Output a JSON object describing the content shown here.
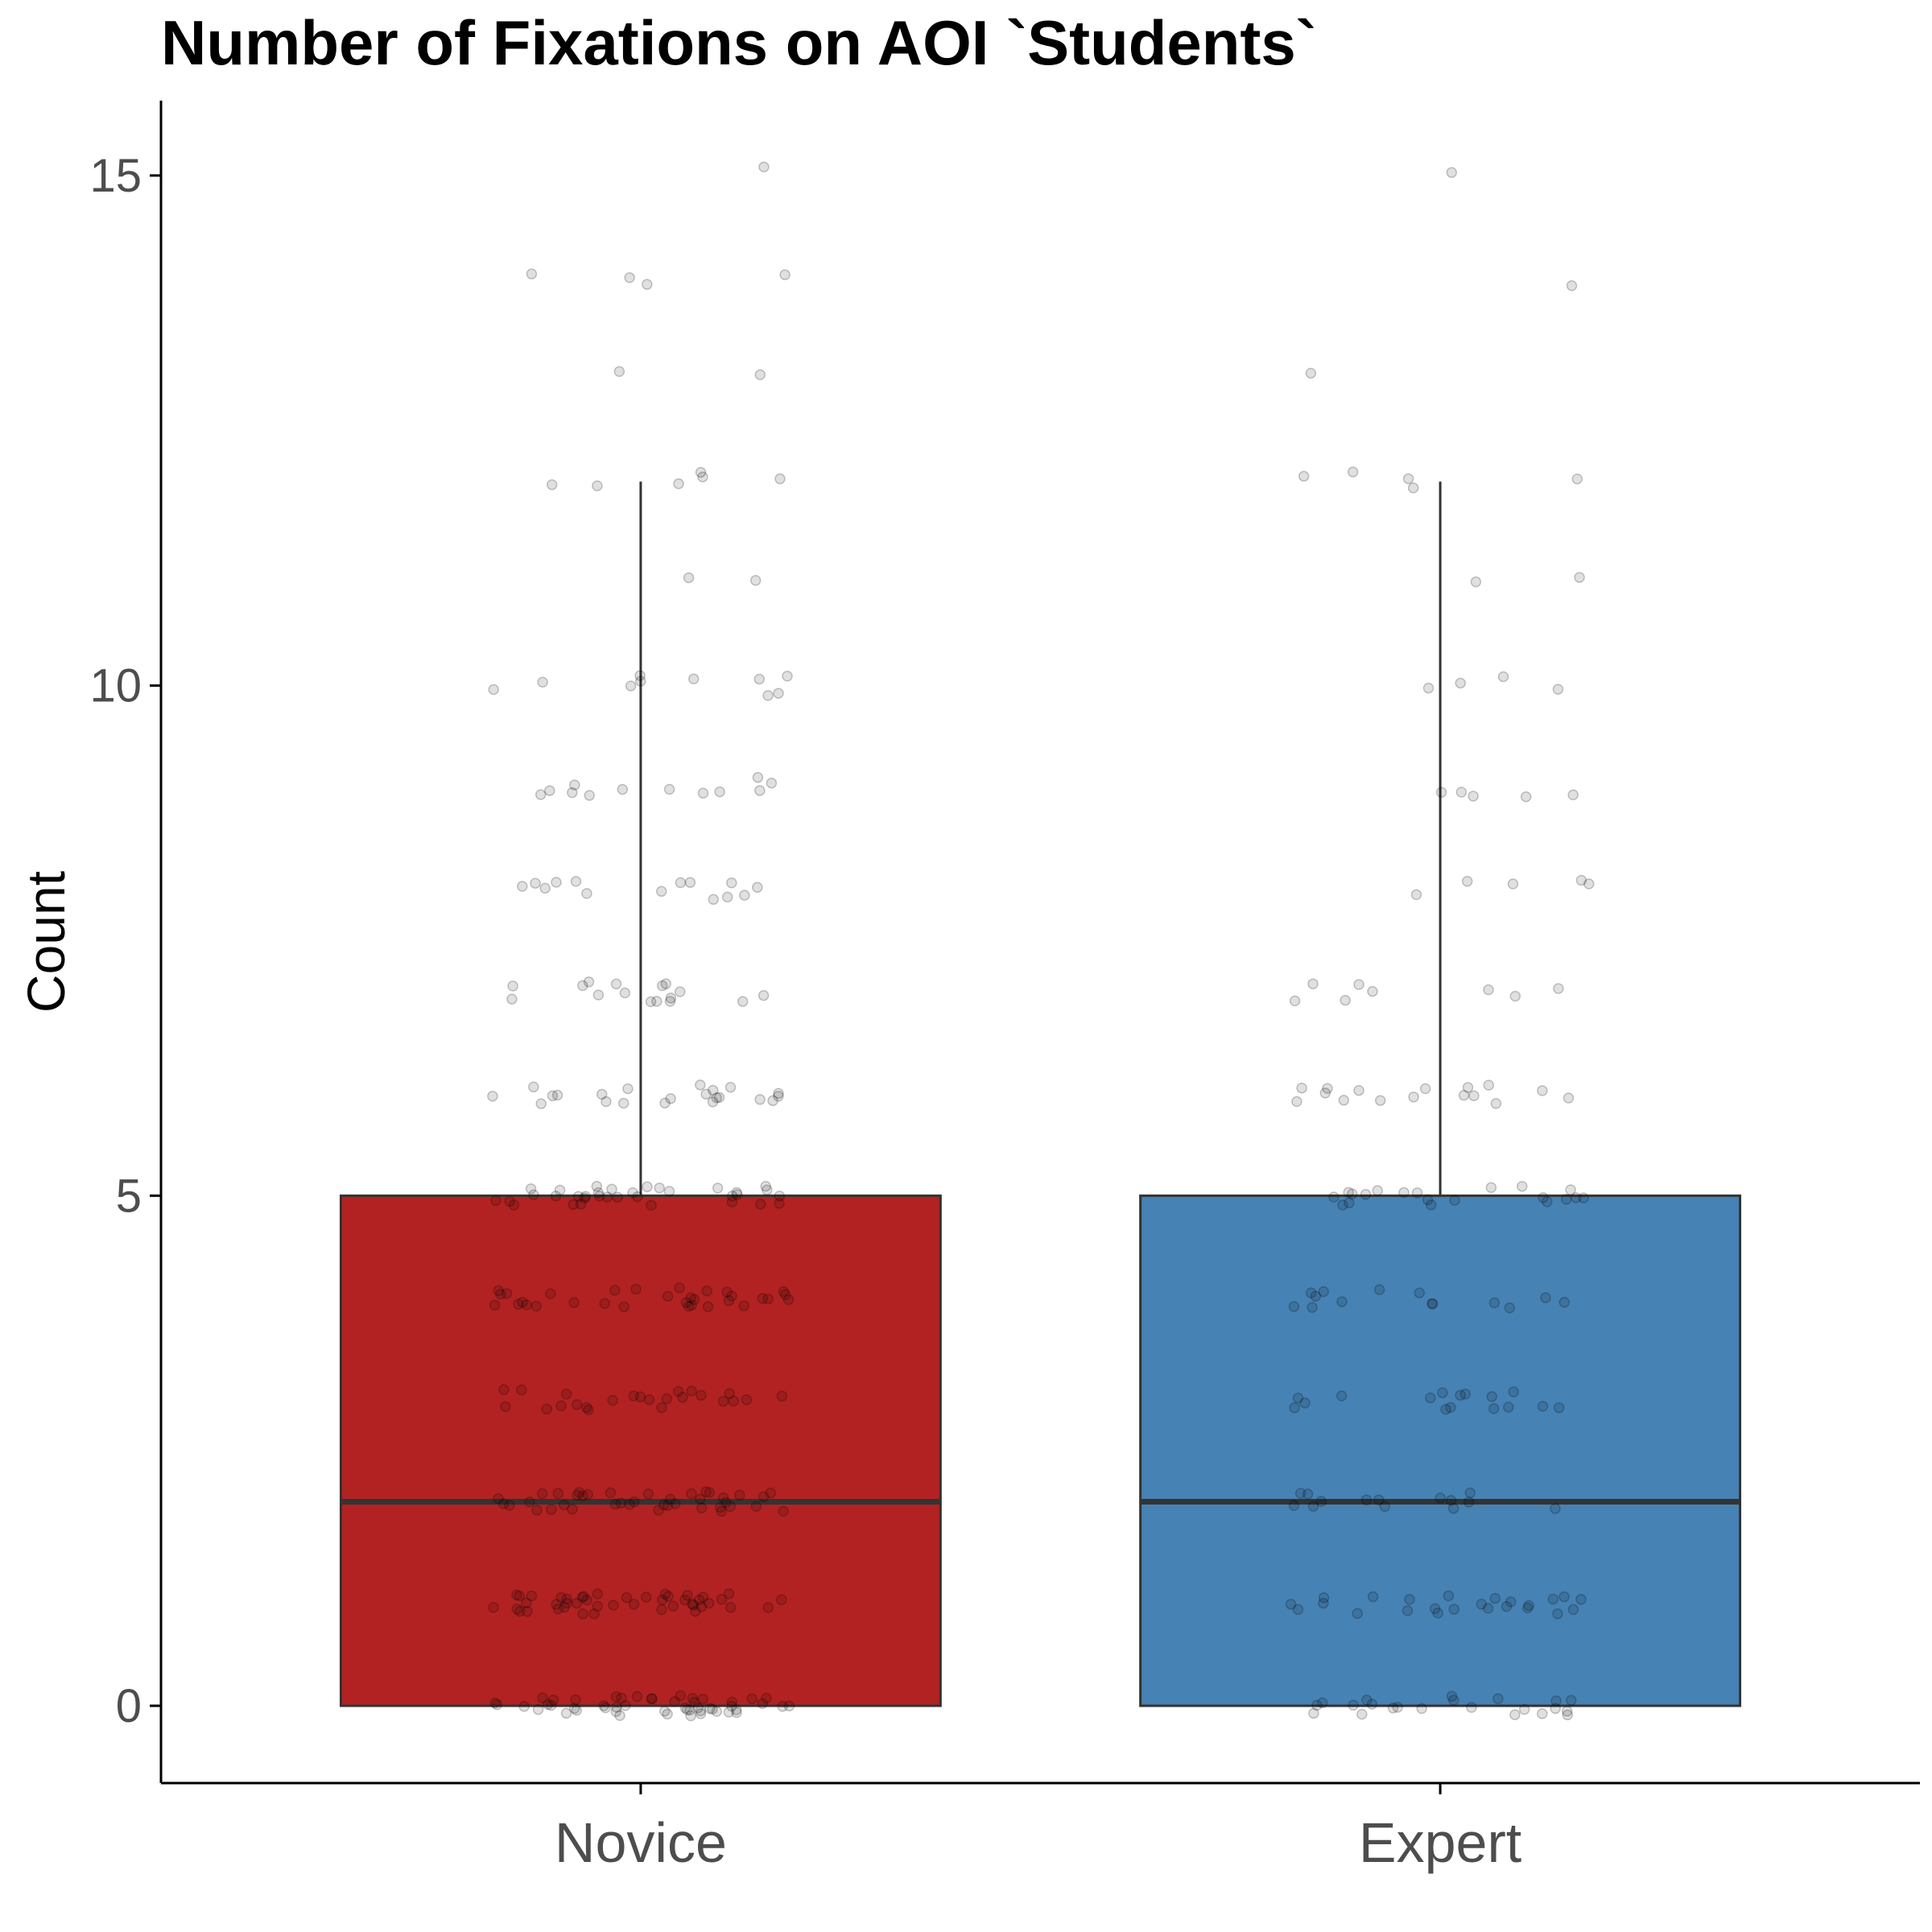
{
  "chart_data": {
    "type": "box",
    "title": "Number of Fixations on AOI `Students`",
    "xlabel": "",
    "ylabel": "Count",
    "ylim": [
      -0.75,
      16
    ],
    "yticks": [
      0,
      5,
      10,
      15
    ],
    "ytick_labels": [
      "0",
      "5",
      "10",
      "15"
    ],
    "grid": false,
    "legend": "none",
    "categories": [
      "Novice",
      "Expert"
    ],
    "series": [
      {
        "category": "Novice",
        "fill": "#b22222",
        "min": 0,
        "q1": 0,
        "median": 2,
        "q3": 5,
        "whisker_high": 12,
        "jitter_counts": {
          "0": 50,
          "1": 45,
          "2": 40,
          "3": 24,
          "4": 32,
          "5": 34,
          "6": 22,
          "7": 16,
          "8": 14,
          "9": 12,
          "10": 10,
          "11": 2,
          "12": 6,
          "13": 2,
          "14": 4,
          "15": 1
        }
      },
      {
        "category": "Expert",
        "fill": "#4682b4",
        "min": 0,
        "q1": 0,
        "median": 2,
        "q3": 5,
        "whisker_high": 12,
        "jitter_counts": {
          "0": 22,
          "1": 24,
          "2": 14,
          "3": 16,
          "4": 14,
          "5": 20,
          "6": 16,
          "7": 8,
          "8": 5,
          "9": 5,
          "10": 4,
          "11": 2,
          "12": 5,
          "13": 1,
          "14": 1,
          "15": 1
        }
      }
    ]
  }
}
